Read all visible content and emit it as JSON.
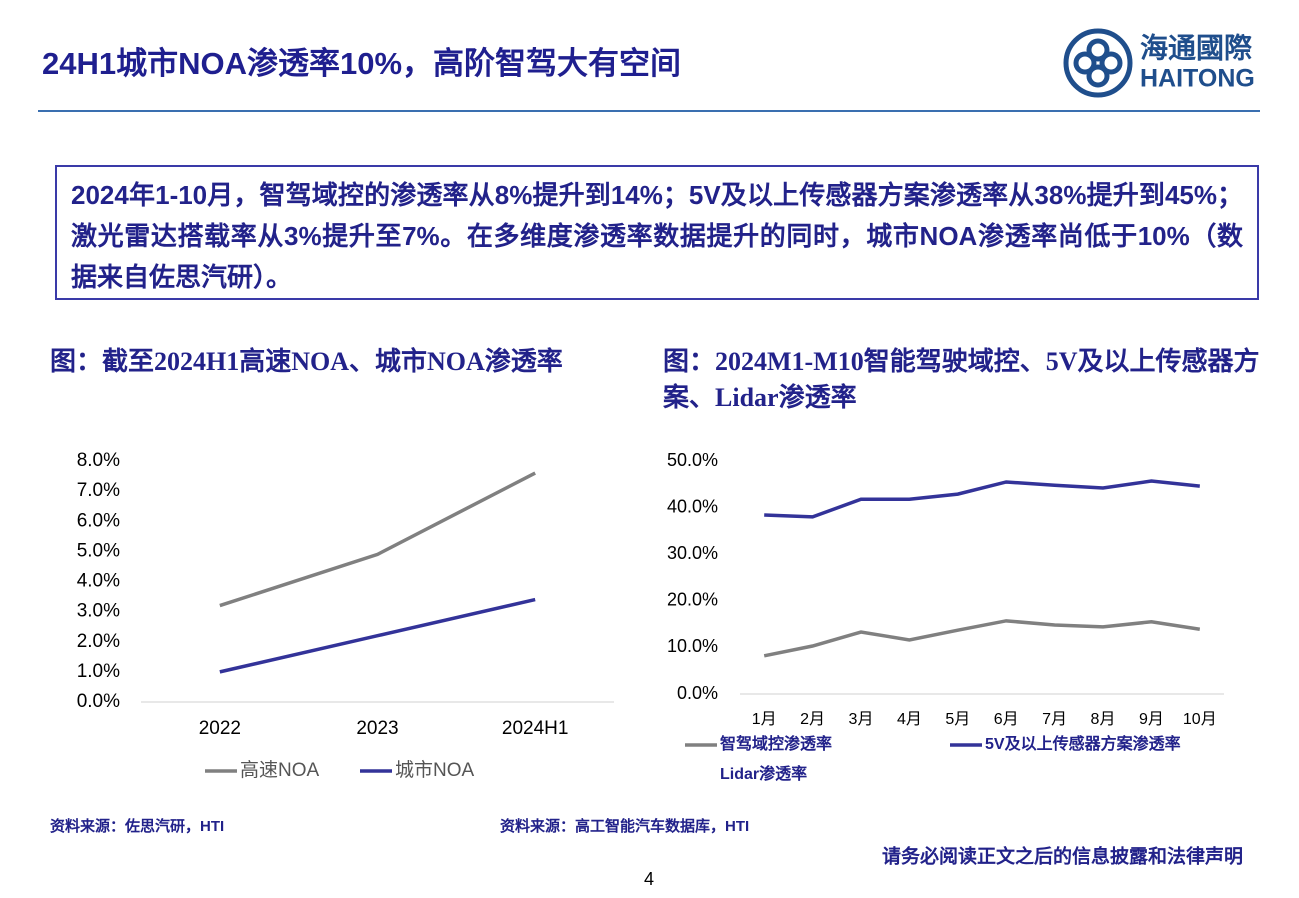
{
  "header": {
    "title": "24H1城市NOA渗透率10%，高阶智驾大有空间",
    "logo_cn": "海通國際",
    "logo_en": "HAITONG"
  },
  "summary": "2024年1-10月，智驾域控的渗透率从8%提升到14%；5V及以上传感器方案渗透率从38%提升到45%；激光雷达搭载率从3%提升至7%。在多维度渗透率数据提升的同时，城市NOA渗透率尚低于10%（数据来自佐思汽研）。",
  "chart_data": [
    {
      "type": "line",
      "title": "图：截至2024H1高速NOA、城市NOA渗透率",
      "categories": [
        "2022",
        "2023",
        "2024H1"
      ],
      "series": [
        {
          "name": "高速NOA",
          "color": "#808080",
          "values": [
            3.2,
            4.9,
            7.6
          ]
        },
        {
          "name": "城市NOA",
          "color": "#333399",
          "values": [
            1.0,
            2.2,
            3.4
          ]
        }
      ],
      "ylim": [
        0,
        8
      ],
      "yticks": [
        {
          "value": 0,
          "label": "0.0%"
        },
        {
          "value": 1,
          "label": "1.0%"
        },
        {
          "value": 2,
          "label": "2.0%"
        },
        {
          "value": 3,
          "label": "3.0%"
        },
        {
          "value": 4,
          "label": "4.0%"
        },
        {
          "value": 5,
          "label": "5.0%"
        },
        {
          "value": 6,
          "label": "6.0%"
        },
        {
          "value": 7,
          "label": "7.0%"
        },
        {
          "value": 8,
          "label": "8.0%"
        }
      ],
      "source": "资料来源：佐思汽研，HTI"
    },
    {
      "type": "line",
      "title": "图：2024M1-M10智能驾驶域控、5V及以上传感器方案、Lidar渗透率",
      "categories": [
        "1月",
        "2月",
        "3月",
        "4月",
        "5月",
        "6月",
        "7月",
        "8月",
        "9月",
        "10月"
      ],
      "series": [
        {
          "name": "智驾域控渗透率",
          "color": "#808080",
          "values": [
            8.2,
            10.3,
            13.3,
            11.6,
            13.7,
            15.7,
            14.8,
            14.4,
            15.5,
            13.9
          ]
        },
        {
          "name": "5V及以上传感器方案渗透率",
          "color": "#333399",
          "values": [
            38.4,
            38.0,
            41.8,
            41.8,
            42.9,
            45.5,
            44.8,
            44.2,
            45.7,
            44.6
          ]
        },
        {
          "name": "Lidar渗透率",
          "values": [
            null,
            null,
            null,
            null,
            null,
            null,
            null,
            null,
            null,
            null
          ]
        }
      ],
      "ylim": [
        0,
        50
      ],
      "yticks": [
        {
          "value": 0,
          "label": "0.0%"
        },
        {
          "value": 10,
          "label": "10.0%"
        },
        {
          "value": 20,
          "label": "20.0%"
        },
        {
          "value": 30,
          "label": "30.0%"
        },
        {
          "value": 40,
          "label": "40.0%"
        },
        {
          "value": 50,
          "label": "50.0%"
        }
      ],
      "source": "资料来源：高工智能汽车数据库，HTI"
    }
  ],
  "footer": {
    "disclaimer": "请务必阅读正文之后的信息披露和法律声明",
    "page": "4"
  }
}
